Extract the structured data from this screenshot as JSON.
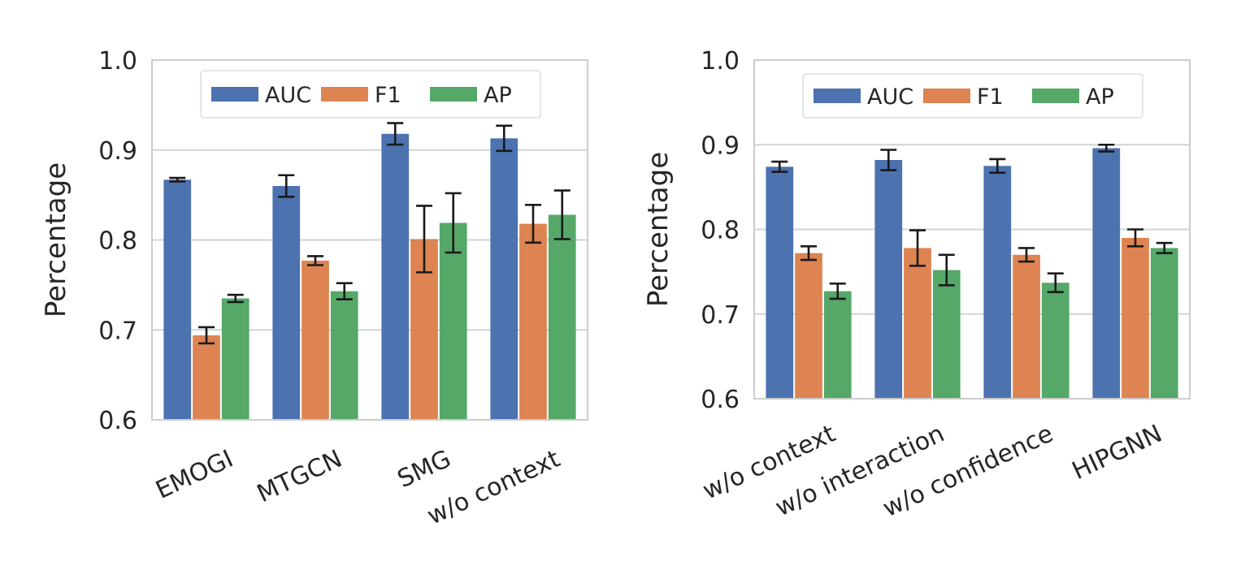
{
  "chart_data": [
    {
      "type": "bar",
      "title": "",
      "xlabel": "",
      "ylabel": "Percentage",
      "ylim": [
        0.6,
        1.0
      ],
      "yticks": [
        "0.6",
        "0.7",
        "0.8",
        "0.9",
        "1.0"
      ],
      "categories": [
        "EMOGI",
        "MTGCN",
        "SMG",
        "w/o context"
      ],
      "grid": true,
      "legend": "top-center",
      "series": [
        {
          "name": "AUC",
          "color": "#4c72b0",
          "values": [
            0.867,
            0.86,
            0.918,
            0.913
          ],
          "errors": [
            0.002,
            0.012,
            0.012,
            0.014
          ]
        },
        {
          "name": "F1",
          "color": "#dd8452",
          "values": [
            0.694,
            0.777,
            0.801,
            0.818
          ],
          "errors": [
            0.009,
            0.005,
            0.037,
            0.021
          ]
        },
        {
          "name": "AP",
          "color": "#55a868",
          "values": [
            0.735,
            0.743,
            0.819,
            0.828
          ],
          "errors": [
            0.004,
            0.009,
            0.033,
            0.027
          ]
        }
      ]
    },
    {
      "type": "bar",
      "title": "",
      "xlabel": "",
      "ylabel": "Percentage",
      "ylim": [
        0.6,
        1.0
      ],
      "yticks": [
        "0.6",
        "0.7",
        "0.8",
        "0.9",
        "1.0"
      ],
      "categories": [
        "w/o context",
        "w/o interaction",
        "w/o confidence",
        "HIPGNN"
      ],
      "grid": true,
      "legend": "top-center",
      "series": [
        {
          "name": "AUC",
          "color": "#4c72b0",
          "values": [
            0.874,
            0.882,
            0.875,
            0.896
          ],
          "errors": [
            0.006,
            0.012,
            0.008,
            0.004
          ]
        },
        {
          "name": "F1",
          "color": "#dd8452",
          "values": [
            0.772,
            0.778,
            0.77,
            0.79
          ],
          "errors": [
            0.008,
            0.021,
            0.008,
            0.01
          ]
        },
        {
          "name": "AP",
          "color": "#55a868",
          "values": [
            0.727,
            0.752,
            0.737,
            0.778
          ],
          "errors": [
            0.009,
            0.018,
            0.011,
            0.006
          ]
        }
      ]
    }
  ]
}
